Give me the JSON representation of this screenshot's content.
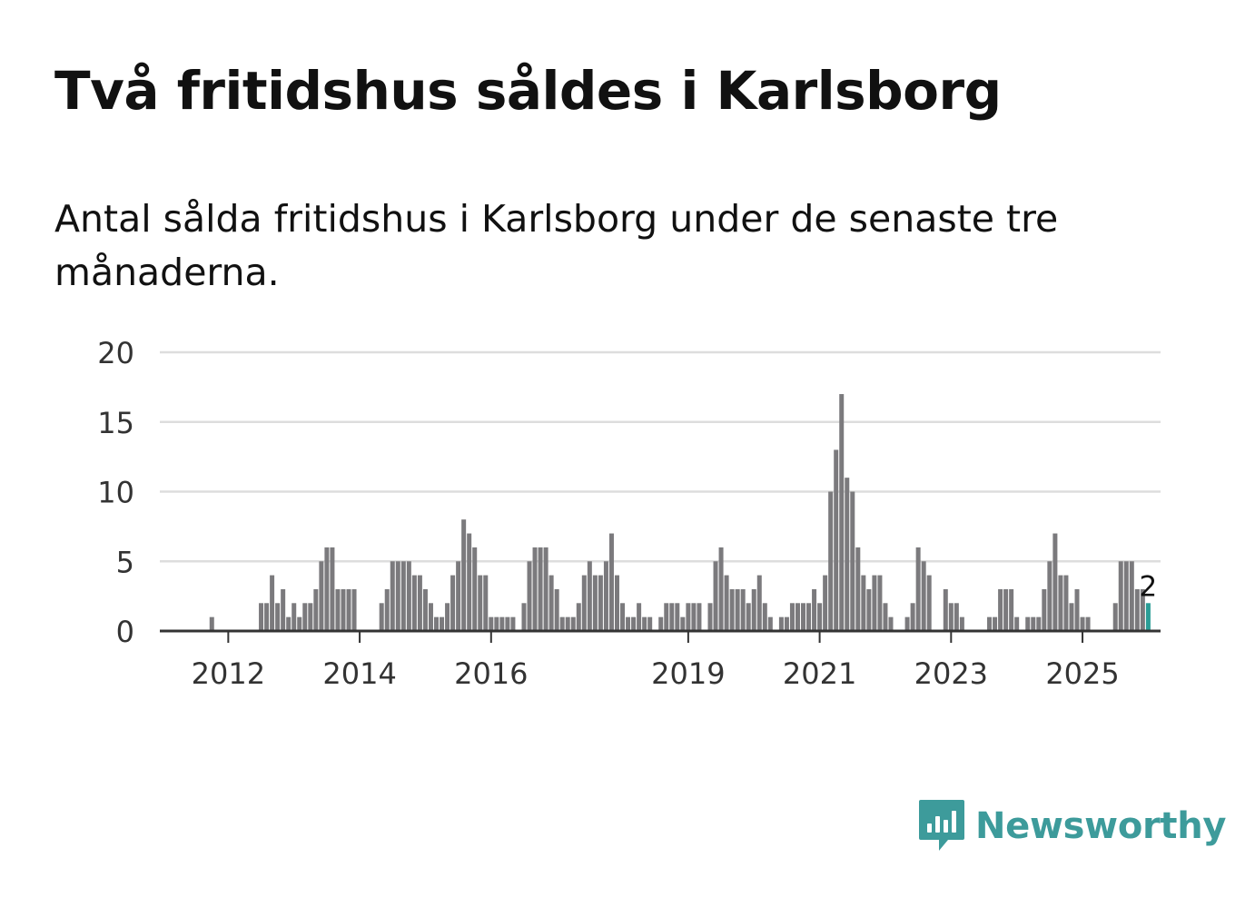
{
  "title": "Två fritidshus såldes i Karlsborg",
  "subtitle": "Antal sålda fritidshus i Karlsborg under de senaste tre månaderna.",
  "brand": {
    "name": "Newsworthy",
    "color": "#3d9b9b",
    "icon": "newsworthy-logo-icon"
  },
  "colors": {
    "bar": "#7b7a7d",
    "highlight": "#2a9d96",
    "grid": "#dddddd",
    "axis": "#333333"
  },
  "chart_data": {
    "type": "bar",
    "title": "",
    "xlabel": "",
    "ylabel": "",
    "ylim": [
      0,
      20
    ],
    "yticks": [
      0,
      5,
      10,
      15,
      20
    ],
    "xticks": [
      {
        "label": "2012",
        "month": "2012-01"
      },
      {
        "label": "2014",
        "month": "2014-01"
      },
      {
        "label": "2016",
        "month": "2016-01"
      },
      {
        "label": "2019",
        "month": "2019-01"
      },
      {
        "label": "2021",
        "month": "2021-01"
      },
      {
        "label": "2023",
        "month": "2023-01"
      },
      {
        "label": "2025",
        "month": "2025-01"
      }
    ],
    "start_month": "2011-01",
    "grid": true,
    "highlight_label": "2",
    "values": [
      0,
      0,
      0,
      0,
      0,
      0,
      0,
      0,
      0,
      1,
      0,
      0,
      0,
      0,
      0,
      0,
      0,
      0,
      2,
      2,
      4,
      2,
      3,
      1,
      2,
      1,
      2,
      2,
      3,
      5,
      6,
      6,
      3,
      3,
      3,
      3,
      0,
      0,
      0,
      0,
      2,
      3,
      5,
      5,
      5,
      5,
      4,
      4,
      3,
      2,
      1,
      1,
      2,
      4,
      5,
      8,
      7,
      6,
      4,
      4,
      1,
      1,
      1,
      1,
      1,
      0,
      2,
      5,
      6,
      6,
      6,
      4,
      3,
      1,
      1,
      1,
      2,
      4,
      5,
      4,
      4,
      5,
      7,
      4,
      2,
      1,
      1,
      2,
      1,
      1,
      0,
      1,
      2,
      2,
      2,
      1,
      2,
      2,
      2,
      0,
      2,
      5,
      6,
      4,
      3,
      3,
      3,
      2,
      3,
      4,
      2,
      1,
      0,
      1,
      1,
      2,
      2,
      2,
      2,
      3,
      2,
      4,
      10,
      13,
      17,
      11,
      10,
      6,
      4,
      3,
      4,
      4,
      2,
      1,
      0,
      0,
      1,
      2,
      6,
      5,
      4,
      0,
      0,
      3,
      2,
      2,
      1,
      0,
      0,
      0,
      0,
      1,
      1,
      3,
      3,
      3,
      1,
      0,
      1,
      1,
      1,
      3,
      5,
      7,
      4,
      4,
      2,
      3,
      1,
      1,
      0,
      0,
      0,
      0,
      2,
      5,
      5,
      5,
      3,
      3,
      2
    ]
  }
}
